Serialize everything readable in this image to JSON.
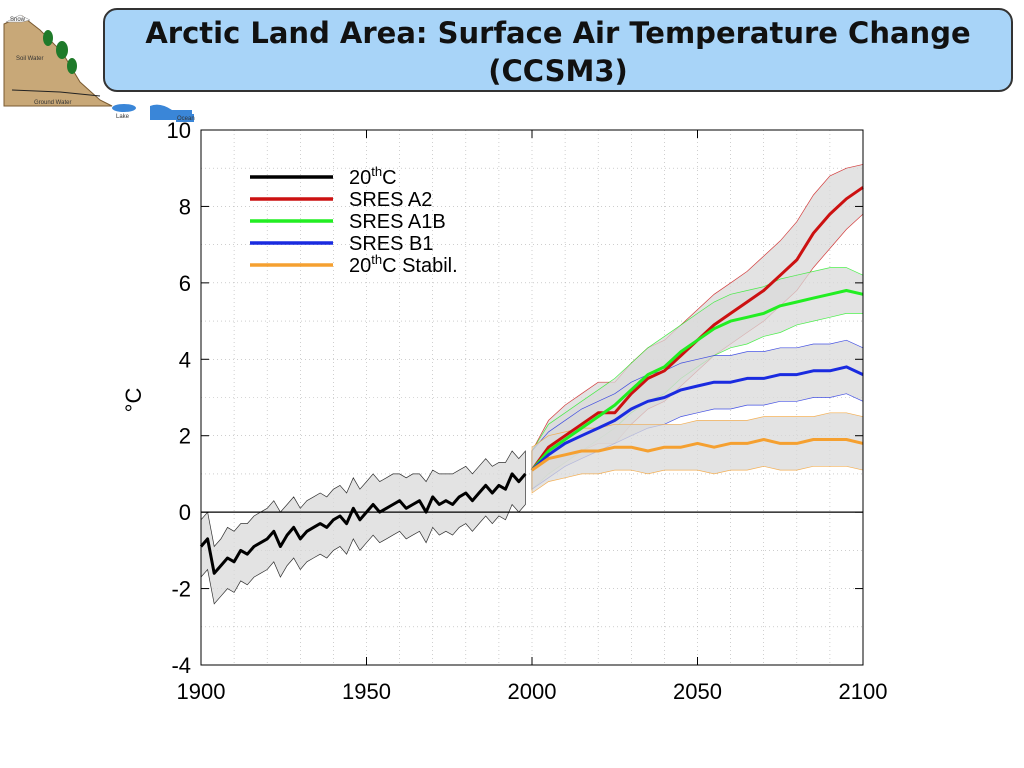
{
  "title": {
    "line1": "Arctic Land Area: Surface Air Temperature Change",
    "line2": "(CCSM3)"
  },
  "logo": {
    "labels": [
      "Snow",
      "Soil Water",
      "Ground Water",
      "Lake",
      "Ocean"
    ],
    "colors": {
      "hill": "#c8a878",
      "tree": "#1f7a2a",
      "water": "#3a86d8"
    }
  },
  "chart_data": {
    "type": "line",
    "xlim": [
      1900,
      2100
    ],
    "ylim": [
      -4,
      10
    ],
    "xticks": [
      1900,
      1950,
      2000,
      2050,
      2100
    ],
    "yticks": [
      -4,
      -2,
      0,
      2,
      4,
      6,
      8,
      10
    ],
    "xtick_labels": [
      "1900",
      "1950",
      "2000",
      "2050",
      "2100"
    ],
    "ytick_labels": [
      "-4",
      "-2",
      "0",
      "2",
      "4",
      "6",
      "8",
      "10"
    ],
    "ylabel": "°C",
    "xlabel": "",
    "grid": "dotted",
    "zero_line": true,
    "legend_position": "top-left",
    "envelope_color": "#d9d9d9",
    "series": [
      {
        "name": "20thC",
        "name_base": "20",
        "name_sup": "th",
        "name_rest": "C",
        "color": "#000000",
        "x": [
          1900,
          1902,
          1904,
          1906,
          1908,
          1910,
          1912,
          1914,
          1916,
          1918,
          1920,
          1922,
          1924,
          1926,
          1928,
          1930,
          1932,
          1934,
          1936,
          1938,
          1940,
          1942,
          1944,
          1946,
          1948,
          1950,
          1952,
          1954,
          1956,
          1958,
          1960,
          1962,
          1964,
          1966,
          1968,
          1970,
          1972,
          1974,
          1976,
          1978,
          1980,
          1982,
          1984,
          1986,
          1988,
          1990,
          1992,
          1994,
          1996,
          1998
        ],
        "values": [
          -0.9,
          -0.7,
          -1.6,
          -1.4,
          -1.2,
          -1.3,
          -1.0,
          -1.1,
          -0.9,
          -0.8,
          -0.7,
          -0.5,
          -0.9,
          -0.6,
          -0.4,
          -0.7,
          -0.5,
          -0.4,
          -0.3,
          -0.4,
          -0.2,
          -0.1,
          -0.3,
          0.1,
          -0.2,
          0.0,
          0.2,
          0.0,
          0.1,
          0.2,
          0.3,
          0.1,
          0.2,
          0.3,
          0.0,
          0.4,
          0.2,
          0.3,
          0.2,
          0.4,
          0.5,
          0.3,
          0.5,
          0.7,
          0.5,
          0.7,
          0.6,
          1.0,
          0.8,
          1.0
        ],
        "upper": [
          -0.2,
          0.0,
          -0.9,
          -0.7,
          -0.4,
          -0.5,
          -0.3,
          -0.3,
          -0.1,
          0.0,
          0.1,
          0.3,
          0.0,
          0.2,
          0.4,
          0.1,
          0.3,
          0.4,
          0.5,
          0.4,
          0.6,
          0.7,
          0.5,
          0.9,
          0.6,
          0.8,
          1.0,
          0.8,
          0.9,
          1.0,
          1.0,
          0.9,
          1.0,
          1.0,
          0.8,
          1.1,
          1.0,
          1.0,
          1.0,
          1.1,
          1.2,
          1.0,
          1.2,
          1.4,
          1.2,
          1.3,
          1.3,
          1.6,
          1.4,
          1.6
        ],
        "lower": [
          -1.7,
          -1.5,
          -2.4,
          -2.2,
          -2.0,
          -2.1,
          -1.8,
          -1.9,
          -1.7,
          -1.6,
          -1.5,
          -1.3,
          -1.7,
          -1.4,
          -1.2,
          -1.5,
          -1.3,
          -1.2,
          -1.1,
          -1.2,
          -1.0,
          -0.9,
          -1.1,
          -0.7,
          -1.0,
          -0.8,
          -0.6,
          -0.8,
          -0.7,
          -0.6,
          -0.5,
          -0.7,
          -0.6,
          -0.5,
          -0.8,
          -0.4,
          -0.6,
          -0.5,
          -0.6,
          -0.4,
          -0.3,
          -0.5,
          -0.3,
          -0.1,
          -0.3,
          -0.1,
          -0.2,
          0.2,
          0.0,
          0.2
        ]
      },
      {
        "name": "SRES A2",
        "color": "#cc1111",
        "x": [
          2000,
          2005,
          2010,
          2015,
          2020,
          2025,
          2030,
          2035,
          2040,
          2045,
          2050,
          2055,
          2060,
          2065,
          2070,
          2075,
          2080,
          2085,
          2090,
          2095,
          2100
        ],
        "values": [
          1.1,
          1.7,
          2.0,
          2.3,
          2.6,
          2.6,
          3.1,
          3.5,
          3.7,
          4.1,
          4.5,
          4.9,
          5.2,
          5.5,
          5.8,
          6.2,
          6.6,
          7.3,
          7.8,
          8.2,
          8.5
        ],
        "upper": [
          1.6,
          2.4,
          2.8,
          3.1,
          3.4,
          3.4,
          3.9,
          4.3,
          4.5,
          4.9,
          5.3,
          5.7,
          6.0,
          6.3,
          6.7,
          7.1,
          7.6,
          8.3,
          8.8,
          9.0,
          9.1
        ],
        "lower": [
          0.6,
          1.0,
          1.3,
          1.6,
          1.8,
          1.8,
          2.3,
          2.7,
          2.9,
          3.3,
          3.7,
          4.1,
          4.4,
          4.7,
          5.0,
          5.4,
          5.8,
          6.4,
          6.9,
          7.4,
          7.8
        ]
      },
      {
        "name": "SRES A1B",
        "color": "#22ee22",
        "x": [
          2000,
          2005,
          2010,
          2015,
          2020,
          2025,
          2030,
          2035,
          2040,
          2045,
          2050,
          2055,
          2060,
          2065,
          2070,
          2075,
          2080,
          2085,
          2090,
          2095,
          2100
        ],
        "values": [
          1.1,
          1.6,
          1.9,
          2.2,
          2.5,
          2.8,
          3.2,
          3.6,
          3.8,
          4.2,
          4.5,
          4.8,
          5.0,
          5.1,
          5.2,
          5.4,
          5.5,
          5.6,
          5.7,
          5.8,
          5.7
        ],
        "upper": [
          1.6,
          2.3,
          2.6,
          2.9,
          3.2,
          3.5,
          3.9,
          4.3,
          4.6,
          4.9,
          5.2,
          5.5,
          5.7,
          5.8,
          5.9,
          6.1,
          6.2,
          6.3,
          6.4,
          6.4,
          6.2
        ],
        "lower": [
          0.6,
          1.0,
          1.3,
          1.6,
          1.9,
          2.2,
          2.6,
          2.9,
          3.1,
          3.5,
          3.8,
          4.1,
          4.3,
          4.4,
          4.6,
          4.7,
          4.9,
          5.0,
          5.1,
          5.2,
          5.2
        ]
      },
      {
        "name": "SRES B1",
        "color": "#1a2be0",
        "x": [
          2000,
          2005,
          2010,
          2015,
          2020,
          2025,
          2030,
          2035,
          2040,
          2045,
          2050,
          2055,
          2060,
          2065,
          2070,
          2075,
          2080,
          2085,
          2090,
          2095,
          2100
        ],
        "values": [
          1.1,
          1.5,
          1.8,
          2.0,
          2.2,
          2.4,
          2.7,
          2.9,
          3.0,
          3.2,
          3.3,
          3.4,
          3.4,
          3.5,
          3.5,
          3.6,
          3.6,
          3.7,
          3.7,
          3.8,
          3.6
        ],
        "upper": [
          1.6,
          2.1,
          2.4,
          2.7,
          2.9,
          3.1,
          3.4,
          3.6,
          3.7,
          3.9,
          4.0,
          4.1,
          4.1,
          4.2,
          4.2,
          4.3,
          4.3,
          4.4,
          4.4,
          4.5,
          4.3
        ],
        "lower": [
          0.6,
          0.9,
          1.2,
          1.4,
          1.6,
          1.8,
          2.0,
          2.2,
          2.3,
          2.5,
          2.6,
          2.7,
          2.7,
          2.8,
          2.8,
          2.9,
          2.9,
          3.0,
          3.0,
          3.1,
          2.9
        ]
      },
      {
        "name": "20thC Stabil.",
        "name_base": "20",
        "name_sup": "th",
        "name_rest": "C Stabil.",
        "color": "#f5a030",
        "x": [
          2000,
          2005,
          2010,
          2015,
          2020,
          2025,
          2030,
          2035,
          2040,
          2045,
          2050,
          2055,
          2060,
          2065,
          2070,
          2075,
          2080,
          2085,
          2090,
          2095,
          2100
        ],
        "values": [
          1.1,
          1.4,
          1.5,
          1.6,
          1.6,
          1.7,
          1.7,
          1.6,
          1.7,
          1.7,
          1.8,
          1.7,
          1.8,
          1.8,
          1.9,
          1.8,
          1.8,
          1.9,
          1.9,
          1.9,
          1.8
        ],
        "upper": [
          1.7,
          2.0,
          2.1,
          2.2,
          2.2,
          2.3,
          2.3,
          2.3,
          2.3,
          2.3,
          2.4,
          2.4,
          2.4,
          2.4,
          2.5,
          2.5,
          2.5,
          2.5,
          2.6,
          2.6,
          2.5
        ],
        "lower": [
          0.5,
          0.8,
          0.9,
          1.0,
          1.0,
          1.1,
          1.1,
          1.0,
          1.1,
          1.1,
          1.1,
          1.0,
          1.1,
          1.1,
          1.2,
          1.1,
          1.1,
          1.2,
          1.2,
          1.2,
          1.1
        ]
      }
    ]
  }
}
